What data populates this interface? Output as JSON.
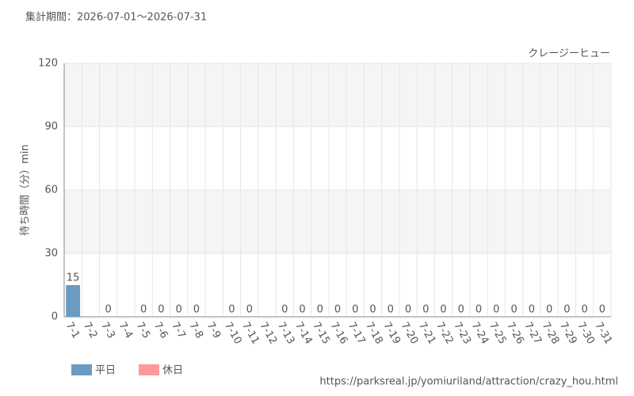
{
  "chart_data": {
    "type": "bar",
    "title": "集計期間：2026-07-01～2026-07-31",
    "subtitle": "クレージーヒュー",
    "y_label": "待ち時間（分）min",
    "source": "https://parksreal.jp/yomiuriland/attraction/crazy_hou.html",
    "categories": [
      "7-1",
      "7-2",
      "7-3",
      "7-4",
      "7-5",
      "7-6",
      "7-7",
      "7-8",
      "7-9",
      "7-10",
      "7-11",
      "7-12",
      "7-13",
      "7-14",
      "7-15",
      "7-16",
      "7-17",
      "7-18",
      "7-19",
      "7-20",
      "7-21",
      "7-22",
      "7-23",
      "7-24",
      "7-25",
      "7-26",
      "7-27",
      "7-28",
      "7-29",
      "7-30",
      "7-31"
    ],
    "category_colors": [
      "#444",
      "#444",
      "#444",
      "#f08080",
      "#f08080",
      "#444",
      "#444",
      "#444",
      "#444",
      "#444",
      "#f08080",
      "#f08080",
      "#444",
      "#444",
      "#444",
      "#444",
      "#444",
      "#f08080",
      "#f08080",
      "#f08080",
      "#444",
      "#444",
      "#444",
      "#444",
      "#f08080",
      "#f08080",
      "#444",
      "#444",
      "#444",
      "#444",
      "#444"
    ],
    "series": [
      {
        "name": "平日",
        "color": "#6a9bc3",
        "values": [
          15,
          null,
          0,
          null,
          null,
          0,
          0,
          0,
          null,
          0,
          null,
          null,
          0,
          0,
          0,
          0,
          0,
          null,
          null,
          null,
          0,
          0,
          0,
          0,
          null,
          null,
          0,
          0,
          0,
          0,
          0
        ]
      },
      {
        "name": "休日",
        "color": "#ff9999",
        "values": [
          null,
          null,
          null,
          null,
          0,
          null,
          null,
          null,
          null,
          null,
          0,
          null,
          null,
          null,
          null,
          null,
          null,
          0,
          0,
          0,
          null,
          null,
          null,
          null,
          0,
          0,
          null,
          null,
          null,
          null,
          null
        ]
      }
    ],
    "ylim": [
      0,
      120
    ],
    "yticks": [
      0,
      30,
      60,
      90,
      120
    ],
    "grid": true
  }
}
